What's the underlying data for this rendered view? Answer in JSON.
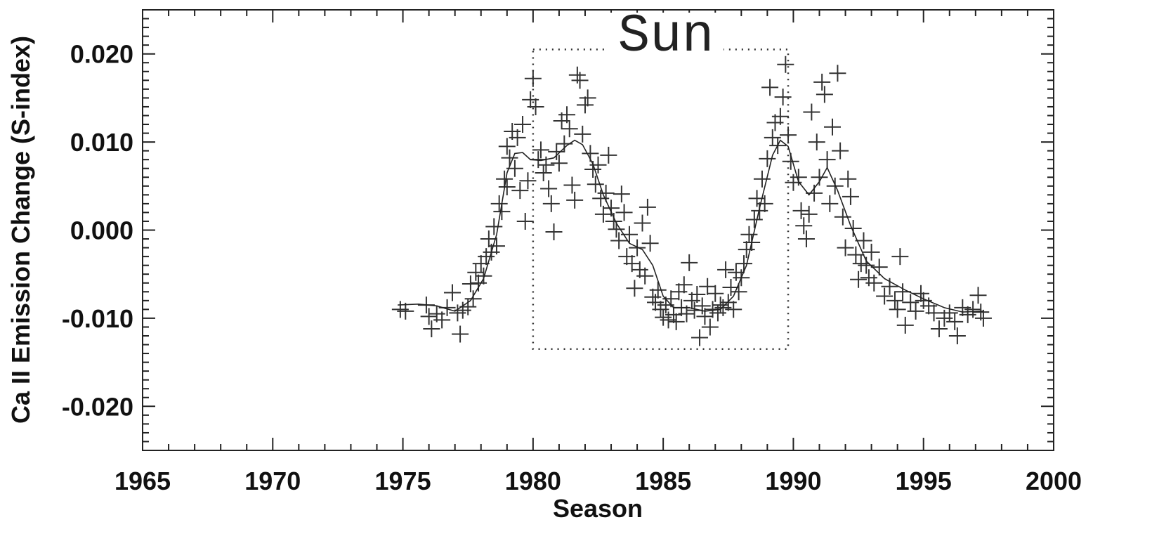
{
  "chart_data": {
    "type": "scatter",
    "title": "Sun",
    "xlabel": "Season",
    "ylabel": "Ca II Emission Change (S-index)",
    "xlim": [
      1965,
      2000
    ],
    "ylim": [
      -0.025,
      0.025
    ],
    "xticks": [
      "1965",
      "1970",
      "1975",
      "1980",
      "1985",
      "1990",
      "1995",
      "2000"
    ],
    "yticks": [
      "0.020",
      "0.010",
      "0.000",
      "-0.010",
      "-0.020"
    ],
    "grid": false,
    "annotation_box": {
      "x": [
        1980.0,
        1989.8
      ],
      "y": [
        -0.0135,
        0.0205
      ],
      "style": "dotted"
    },
    "series": [
      {
        "type": "scatter",
        "marker": "+",
        "points": [
          [
            1974.9,
            -0.009
          ],
          [
            1975.1,
            -0.0092
          ],
          [
            1975.9,
            -0.0085
          ],
          [
            1976.0,
            -0.0098
          ],
          [
            1976.1,
            -0.0112
          ],
          [
            1976.3,
            -0.0095
          ],
          [
            1976.5,
            -0.0102
          ],
          [
            1976.7,
            -0.0088
          ],
          [
            1976.9,
            -0.0071
          ],
          [
            1977.1,
            -0.0094
          ],
          [
            1977.2,
            -0.0118
          ],
          [
            1977.3,
            -0.0091
          ],
          [
            1977.5,
            -0.0087
          ],
          [
            1977.6,
            -0.0061
          ],
          [
            1977.7,
            -0.0078
          ],
          [
            1977.8,
            -0.0048
          ],
          [
            1977.9,
            -0.006
          ],
          [
            1978.0,
            -0.0038
          ],
          [
            1978.1,
            -0.0052
          ],
          [
            1978.2,
            -0.003
          ],
          [
            1978.3,
            -0.001
          ],
          [
            1978.4,
            -0.0025
          ],
          [
            1978.5,
            0.0004
          ],
          [
            1978.6,
            -0.0018
          ],
          [
            1978.7,
            0.003
          ],
          [
            1978.8,
            0.0021
          ],
          [
            1978.9,
            0.0058
          ],
          [
            1979.0,
            0.0049
          ],
          [
            1979.0,
            0.0095
          ],
          [
            1979.1,
            0.0082
          ],
          [
            1979.2,
            0.0112
          ],
          [
            1979.3,
            0.007
          ],
          [
            1979.4,
            0.0105
          ],
          [
            1979.5,
            0.0045
          ],
          [
            1979.6,
            0.012
          ],
          [
            1979.7,
            0.001
          ],
          [
            1979.8,
            0.0056
          ],
          [
            1979.9,
            0.0148
          ],
          [
            1980.0,
            0.0172
          ],
          [
            1980.1,
            0.014
          ],
          [
            1980.2,
            0.008
          ],
          [
            1980.3,
            0.0091
          ],
          [
            1980.4,
            0.0065
          ],
          [
            1980.5,
            0.0074
          ],
          [
            1980.6,
            0.0047
          ],
          [
            1980.7,
            0.003
          ],
          [
            1980.8,
            -0.0002
          ],
          [
            1980.9,
            0.0089
          ],
          [
            1981.0,
            0.0076
          ],
          [
            1981.1,
            0.0124
          ],
          [
            1981.2,
            0.0098
          ],
          [
            1981.3,
            0.0131
          ],
          [
            1981.4,
            0.0115
          ],
          [
            1981.5,
            0.0051
          ],
          [
            1981.6,
            0.0034
          ],
          [
            1981.7,
            0.0176
          ],
          [
            1981.8,
            0.017
          ],
          [
            1981.9,
            0.0109
          ],
          [
            1982.0,
            0.0142
          ],
          [
            1982.1,
            0.015
          ],
          [
            1982.2,
            0.0087
          ],
          [
            1982.3,
            0.0069
          ],
          [
            1982.4,
            0.0052
          ],
          [
            1982.5,
            0.0074
          ],
          [
            1982.6,
            0.0036
          ],
          [
            1982.7,
            0.0018
          ],
          [
            1982.8,
            0.0042
          ],
          [
            1982.9,
            0.0085
          ],
          [
            1983.0,
            0.0025
          ],
          [
            1983.1,
            0.001
          ],
          [
            1983.2,
            0.0001
          ],
          [
            1983.3,
            -0.0012
          ],
          [
            1983.4,
            0.0041
          ],
          [
            1983.5,
            0.002
          ],
          [
            1983.6,
            -0.003
          ],
          [
            1983.7,
            -0.0005
          ],
          [
            1983.8,
            -0.0038
          ],
          [
            1983.9,
            -0.0066
          ],
          [
            1984.0,
            -0.002
          ],
          [
            1984.1,
            -0.0045
          ],
          [
            1984.2,
            0.0008
          ],
          [
            1984.3,
            -0.0052
          ],
          [
            1984.4,
            0.0026
          ],
          [
            1984.5,
            -0.0015
          ],
          [
            1984.6,
            -0.0076
          ],
          [
            1984.7,
            -0.0082
          ],
          [
            1984.8,
            -0.0068
          ],
          [
            1984.9,
            -0.009
          ],
          [
            1985.0,
            -0.0099
          ],
          [
            1985.1,
            -0.0085
          ],
          [
            1985.2,
            -0.0102
          ],
          [
            1985.3,
            -0.0078
          ],
          [
            1985.4,
            -0.0096
          ],
          [
            1985.5,
            -0.0104
          ],
          [
            1985.6,
            -0.007
          ],
          [
            1985.7,
            -0.0088
          ],
          [
            1985.8,
            -0.0062
          ],
          [
            1985.9,
            -0.0095
          ],
          [
            1986.0,
            -0.0037
          ],
          [
            1986.1,
            -0.008
          ],
          [
            1986.2,
            -0.0091
          ],
          [
            1986.3,
            -0.0073
          ],
          [
            1986.4,
            -0.0122
          ],
          [
            1986.5,
            -0.0086
          ],
          [
            1986.6,
            -0.0098
          ],
          [
            1986.7,
            -0.0064
          ],
          [
            1986.8,
            -0.011
          ],
          [
            1986.9,
            -0.009
          ],
          [
            1987.0,
            -0.0072
          ],
          [
            1987.1,
            -0.0094
          ],
          [
            1987.2,
            -0.0085
          ],
          [
            1987.3,
            -0.0088
          ],
          [
            1987.4,
            -0.0045
          ],
          [
            1987.5,
            -0.0082
          ],
          [
            1987.6,
            -0.0065
          ],
          [
            1987.7,
            -0.009
          ],
          [
            1987.8,
            -0.0048
          ],
          [
            1987.9,
            -0.007
          ],
          [
            1988.0,
            -0.0054
          ],
          [
            1988.1,
            -0.0038
          ],
          [
            1988.2,
            -0.0022
          ],
          [
            1988.3,
            -0.0005
          ],
          [
            1988.4,
            -0.0014
          ],
          [
            1988.5,
            0.0012
          ],
          [
            1988.6,
            0.0036
          ],
          [
            1988.7,
            0.0022
          ],
          [
            1988.8,
            0.0058
          ],
          [
            1988.9,
            0.003
          ],
          [
            1989.0,
            0.0081
          ],
          [
            1989.1,
            0.0162
          ],
          [
            1989.2,
            0.0105
          ],
          [
            1989.3,
            0.0122
          ],
          [
            1989.4,
            0.0096
          ],
          [
            1989.5,
            0.0129
          ],
          [
            1989.6,
            0.0151
          ],
          [
            1989.7,
            0.0188
          ],
          [
            1989.8,
            0.0108
          ],
          [
            1989.9,
            0.0078
          ],
          [
            1990.0,
            0.0054
          ],
          [
            1990.2,
            0.006
          ],
          [
            1990.3,
            0.0022
          ],
          [
            1990.4,
            0.0005
          ],
          [
            1990.5,
            -0.001
          ],
          [
            1990.6,
            0.0018
          ],
          [
            1990.7,
            0.0134
          ],
          [
            1990.8,
            0.0042
          ],
          [
            1990.9,
            0.01
          ],
          [
            1991.0,
            0.006
          ],
          [
            1991.1,
            0.0168
          ],
          [
            1991.2,
            0.0154
          ],
          [
            1991.3,
            0.008
          ],
          [
            1991.4,
            0.003
          ],
          [
            1991.5,
            0.0117
          ],
          [
            1991.6,
            0.005
          ],
          [
            1991.7,
            0.0178
          ],
          [
            1991.8,
            0.009
          ],
          [
            1991.9,
            0.0015
          ],
          [
            1992.0,
            -0.002
          ],
          [
            1992.1,
            0.0058
          ],
          [
            1992.2,
            0.0038
          ],
          [
            1992.3,
            0.0002
          ],
          [
            1992.4,
            -0.0028
          ],
          [
            1992.5,
            -0.0056
          ],
          [
            1992.6,
            -0.0038
          ],
          [
            1992.7,
            -0.0012
          ],
          [
            1992.8,
            -0.004
          ],
          [
            1992.9,
            -0.0054
          ],
          [
            1993.0,
            -0.0025
          ],
          [
            1993.1,
            -0.006
          ],
          [
            1993.3,
            -0.0042
          ],
          [
            1993.5,
            -0.0075
          ],
          [
            1993.7,
            -0.0064
          ],
          [
            1993.9,
            -0.008
          ],
          [
            1994.0,
            -0.009
          ],
          [
            1994.1,
            -0.003
          ],
          [
            1994.2,
            -0.007
          ],
          [
            1994.3,
            -0.0108
          ],
          [
            1994.5,
            -0.0082
          ],
          [
            1994.7,
            -0.0092
          ],
          [
            1994.9,
            -0.0072
          ],
          [
            1995.0,
            -0.008
          ],
          [
            1995.2,
            -0.0086
          ],
          [
            1995.4,
            -0.0094
          ],
          [
            1995.6,
            -0.0112
          ],
          [
            1995.8,
            -0.01
          ],
          [
            1996.0,
            -0.0094
          ],
          [
            1996.2,
            -0.0104
          ],
          [
            1996.3,
            -0.012
          ],
          [
            1996.5,
            -0.0088
          ],
          [
            1996.7,
            -0.0096
          ],
          [
            1996.9,
            -0.009
          ],
          [
            1997.1,
            -0.0074
          ],
          [
            1997.2,
            -0.0093
          ],
          [
            1997.3,
            -0.01
          ]
        ]
      },
      {
        "type": "line",
        "points": [
          [
            1974.8,
            -0.0085
          ],
          [
            1975.6,
            -0.0084
          ],
          [
            1976.3,
            -0.0086
          ],
          [
            1977.0,
            -0.0092
          ],
          [
            1977.6,
            -0.008
          ],
          [
            1978.1,
            -0.0055
          ],
          [
            1978.6,
            -0.0005
          ],
          [
            1979.0,
            0.0065
          ],
          [
            1979.3,
            0.0087
          ],
          [
            1979.6,
            0.0088
          ],
          [
            1979.9,
            0.008
          ],
          [
            1980.3,
            0.0079
          ],
          [
            1980.8,
            0.0082
          ],
          [
            1981.3,
            0.0096
          ],
          [
            1981.6,
            0.0102
          ],
          [
            1981.9,
            0.0097
          ],
          [
            1982.3,
            0.0075
          ],
          [
            1982.7,
            0.004
          ],
          [
            1983.2,
            0.0008
          ],
          [
            1983.7,
            -0.0015
          ],
          [
            1984.2,
            -0.0022
          ],
          [
            1984.6,
            -0.004
          ],
          [
            1985.0,
            -0.0075
          ],
          [
            1985.4,
            -0.0088
          ],
          [
            1986.0,
            -0.0088
          ],
          [
            1986.6,
            -0.0092
          ],
          [
            1987.2,
            -0.009
          ],
          [
            1987.7,
            -0.0075
          ],
          [
            1988.2,
            -0.004
          ],
          [
            1988.7,
            0.0025
          ],
          [
            1989.2,
            0.0085
          ],
          [
            1989.5,
            0.0102
          ],
          [
            1989.8,
            0.0095
          ],
          [
            1990.2,
            0.0055
          ],
          [
            1990.6,
            0.004
          ],
          [
            1991.0,
            0.0055
          ],
          [
            1991.3,
            0.0071
          ],
          [
            1991.7,
            0.0045
          ],
          [
            1992.2,
            0.0005
          ],
          [
            1992.8,
            -0.0035
          ],
          [
            1993.5,
            -0.0055
          ],
          [
            1994.3,
            -0.0068
          ],
          [
            1995.0,
            -0.0078
          ],
          [
            1995.8,
            -0.0088
          ],
          [
            1996.5,
            -0.0093
          ],
          [
            1997.3,
            -0.0092
          ]
        ]
      }
    ]
  }
}
